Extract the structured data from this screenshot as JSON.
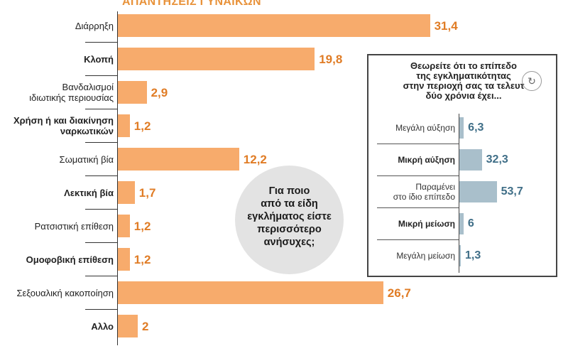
{
  "header": {
    "title": "ΑΠΑΝΤΗΣΕΙΣ ΓΥΝΑΙΚΩΝ"
  },
  "chart_data": [
    {
      "type": "bar",
      "orientation": "horizontal",
      "title": "ΑΠΑΝΤΗΣΕΙΣ ΓΥΝΑΙΚΩΝ",
      "question": "Για ποιο από τα είδη εγκλήματος είστε περισσότερο ανήσυχες;",
      "categories": [
        "Διάρρηξη",
        "Κλοπή",
        "Βανδαλισμοί ιδιωτικής περιουσίας",
        "Χρήση ή και διακίνηση ναρκωτικών",
        "Σωματική βία",
        "Λεκτική βία",
        "Ρατσιστική επίθεση",
        "Ομοφοβική επίθεση",
        "Σεξουαλική κακοποίηση",
        "Αλλο"
      ],
      "display_labels": [
        [
          "Διάρρηξη"
        ],
        [
          "Κλοπή"
        ],
        [
          "Βανδαλισμοί",
          "ιδιωτικής περιουσίας"
        ],
        [
          "Χρήση ή και διακίνηση",
          "ναρκωτικών"
        ],
        [
          "Σωματική βία"
        ],
        [
          "Λεκτική βία"
        ],
        [
          "Ρατσιστική επίθεση"
        ],
        [
          "Ομοφοβική επίθεση"
        ],
        [
          "Σεξουαλική κακοποίηση"
        ],
        [
          "Αλλο"
        ]
      ],
      "bold": [
        false,
        true,
        false,
        true,
        false,
        true,
        false,
        true,
        false,
        true
      ],
      "values": [
        31.4,
        19.8,
        2.9,
        1.2,
        12.2,
        1.7,
        1.2,
        1.2,
        26.7,
        2
      ],
      "value_labels": [
        "31,4",
        "19,8",
        "2,9",
        "1,2",
        "12,2",
        "1,7",
        "1,2",
        "1,2",
        "26,7",
        "2"
      ],
      "bar_color": "#f7ab6c",
      "value_color": "#e07c25"
    },
    {
      "type": "bar",
      "orientation": "horizontal",
      "title": "Θεωρείτε ότι το επίπεδο της εγκληματικότητας στην περιοχή σας τα τελευταία δύο χρόνια έχει...",
      "display_title": [
        "Θεωρείτε ότι το επίπεδο",
        "της εγκληματικότητας",
        "στην περιοχή σας τα τελευτ",
        "δύο χρόνια έχει..."
      ],
      "categories": [
        "Μεγάλη αύξηση",
        "Μικρή αύξηση",
        "Παραμένει στο ίδιο επίπεδο",
        "Μικρή μείωση",
        "Μεγάλη μείωση"
      ],
      "display_labels": [
        [
          "Μεγάλη αύξηση"
        ],
        [
          "Μικρή αύξηση"
        ],
        [
          "Παραμένει",
          "στο ίδιο επίπεδο"
        ],
        [
          "Μικρή μείωση"
        ],
        [
          "Μεγάλη μείωση"
        ]
      ],
      "bold": [
        false,
        true,
        false,
        true,
        false
      ],
      "values": [
        6.3,
        32.3,
        53.7,
        6,
        1.3
      ],
      "value_labels": [
        "6,3",
        "32,3",
        "53,7",
        "6",
        "1,3"
      ],
      "bar_color": "#a9bfcb",
      "value_color": "#3f6e87"
    }
  ],
  "bubble": {
    "lines": [
      "Για ποιο",
      "από τα είδη",
      "εγκλήματος είστε",
      "περισσότερο",
      "ανήσυχες;"
    ]
  },
  "panel": {
    "icon": "↻"
  },
  "icons": {
    "panel_icon_name": "refresh-icon"
  }
}
